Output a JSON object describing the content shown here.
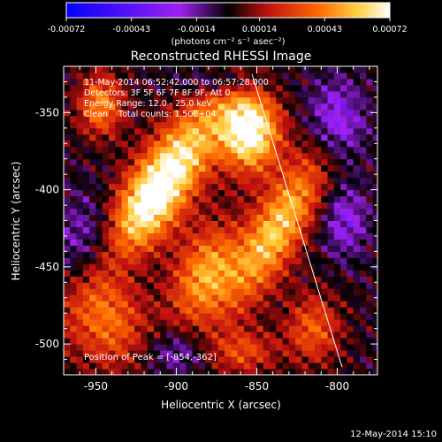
{
  "chart_data": {
    "type": "heatmap",
    "title": "Reconstructed RHESSI Image",
    "xlabel": "Heliocentric X (arcsec)",
    "ylabel": "Heliocentric Y (arcsec)",
    "xlim": [
      -970,
      -775
    ],
    "ylim": [
      -520,
      -320
    ],
    "xticks": [
      -950,
      -900,
      -850,
      -800
    ],
    "yticks": [
      -350,
      -400,
      -450,
      -500
    ],
    "colorbar": {
      "range": [
        -0.00072,
        0.00072
      ],
      "ticks": [
        {
          "value": -0.00072,
          "label": "-0.00072"
        },
        {
          "value": -0.00043,
          "label": "-0.00043"
        },
        {
          "value": -0.00014,
          "label": "-0.00014"
        },
        {
          "value": 0.00014,
          "label": "0.00014"
        },
        {
          "value": 0.00043,
          "label": "0.00043"
        },
        {
          "value": 0.00072,
          "label": "0.00072"
        }
      ],
      "units": "(photons cm⁻² s⁻¹ asec⁻²)"
    },
    "info_lines": [
      "11-May-2014 06:52:42.000 to 06:57:28.000",
      "Detectors: 3F 5F 6F 7F 8F 9F, Att 0",
      "Energy Range: 12.0 - 25.0 keV",
      "Clean    Total counts: 1.50E+04"
    ],
    "peak_label": "Position of Peak = [-854,-362]",
    "peak_position": [
      -854,
      -362
    ],
    "limb_line": [
      [
        -853,
        -325
      ],
      [
        -797,
        -515
      ]
    ],
    "sources": [
      {
        "x": -915,
        "y": -405,
        "sx": 14,
        "sy": 50,
        "angle": 33,
        "amp": 0.00085
      },
      {
        "x": -854,
        "y": -362,
        "sx": 13,
        "sy": 18,
        "angle": 0,
        "amp": 0.00078
      },
      {
        "x": -837,
        "y": -425,
        "sx": 12,
        "sy": 38,
        "angle": 28,
        "amp": 0.00058
      },
      {
        "x": -882,
        "y": -455,
        "sx": 14,
        "sy": 24,
        "angle": 20,
        "amp": 0.0005
      },
      {
        "x": -947,
        "y": -345,
        "sx": 10,
        "sy": 14,
        "angle": 0,
        "amp": 0.00045
      },
      {
        "x": -940,
        "y": -485,
        "sx": 16,
        "sy": 22,
        "angle": 0,
        "amp": 0.00038
      },
      {
        "x": -815,
        "y": -490,
        "sx": 12,
        "sy": 16,
        "angle": 0,
        "amp": 0.00035
      },
      {
        "x": -858,
        "y": -505,
        "sx": 14,
        "sy": 10,
        "angle": 0,
        "amp": 0.0003
      },
      {
        "x": -945,
        "y": -440,
        "sx": 18,
        "sy": 22,
        "angle": 0,
        "amp": -0.00042
      },
      {
        "x": -800,
        "y": -355,
        "sx": 12,
        "sy": 18,
        "angle": 0,
        "amp": -0.00032
      },
      {
        "x": -870,
        "y": -330,
        "sx": 18,
        "sy": 6,
        "angle": 0,
        "amp": -0.00025
      },
      {
        "x": -795,
        "y": -420,
        "sx": 10,
        "sy": 16,
        "angle": 0,
        "amp": -0.00025
      },
      {
        "x": -900,
        "y": -505,
        "sx": 12,
        "sy": 10,
        "angle": 0,
        "amp": -0.0002
      }
    ]
  },
  "footer": {
    "timestamp": "12-May-2014 15:10"
  }
}
